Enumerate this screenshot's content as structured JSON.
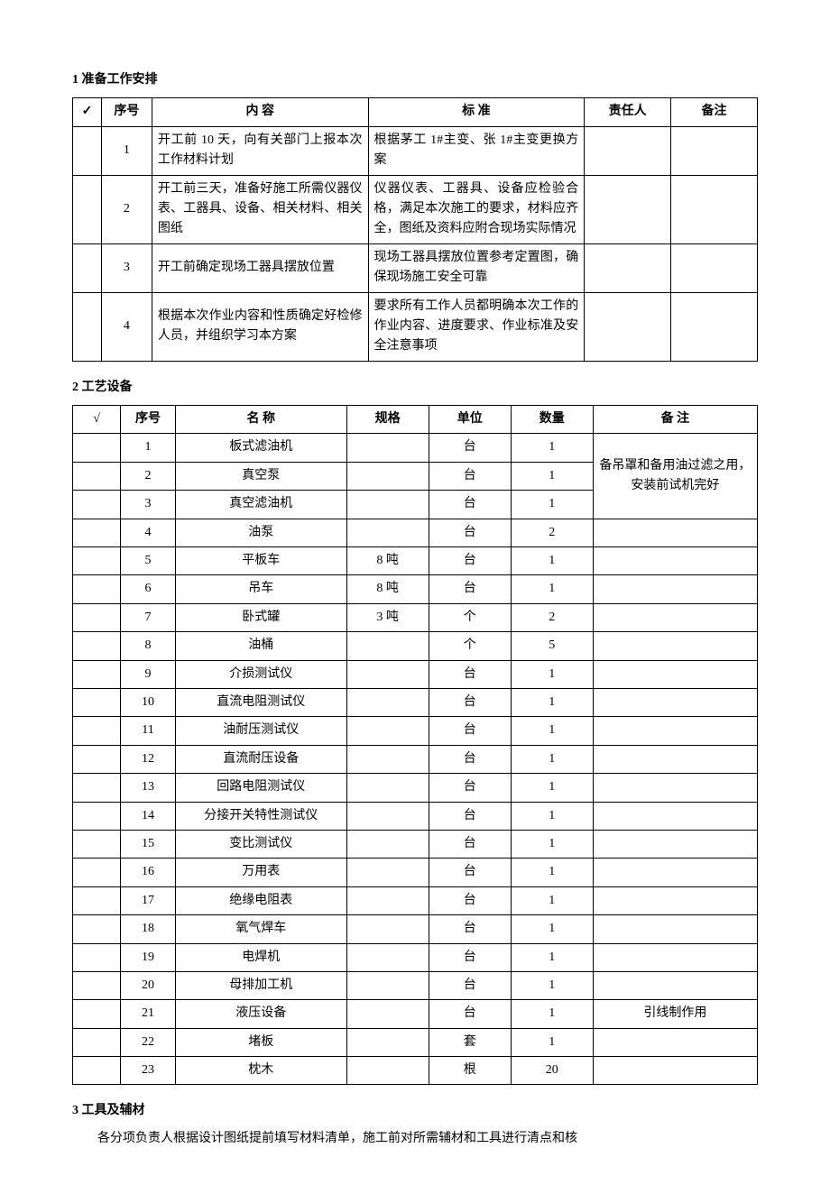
{
  "section1": {
    "title": "1 准备工作安排",
    "headers": {
      "check": "✓",
      "seq": "序号",
      "content": "内      容",
      "standard": "标      准",
      "person": "责任人",
      "remark": "备注"
    },
    "rows": [
      {
        "seq": "1",
        "content": "开工前 10 天，向有关部门上报本次工作材料计划",
        "standard": "根据茅工 1#主变、张 1#主变更换方案",
        "person": "",
        "remark": ""
      },
      {
        "seq": "2",
        "content": "开工前三天，准备好施工所需仪器仪表、工器具、设备、相关材料、相关图纸",
        "standard": "仪器仪表、工器具、设备应检验合格，满足本次施工的要求，材料应齐全，图纸及资料应附合现场实际情况",
        "person": "",
        "remark": ""
      },
      {
        "seq": "3",
        "content": "开工前确定现场工器具摆放位置",
        "standard": "现场工器具摆放位置参考定置图，确保现场施工安全可靠",
        "person": "",
        "remark": ""
      },
      {
        "seq": "4",
        "content": "根据本次作业内容和性质确定好检修人员，并组织学习本方案",
        "standard": "要求所有工作人员都明确本次工作的作业内容、进度要求、作业标准及安全注意事项",
        "person": "",
        "remark": ""
      }
    ]
  },
  "section2": {
    "title": "2 工艺设备",
    "headers": {
      "check": "√",
      "seq": "序号",
      "name": "名      称",
      "spec": "规格",
      "unit": "单位",
      "qty": "数量",
      "remark": "备      注"
    },
    "rows": [
      {
        "seq": "1",
        "name": "板式滤油机",
        "spec": "",
        "unit": "台",
        "qty": "1",
        "remark": ""
      },
      {
        "seq": "2",
        "name": "真空泵",
        "spec": "",
        "unit": "台",
        "qty": "1",
        "remark": ""
      },
      {
        "seq": "3",
        "name": "真空滤油机",
        "spec": "",
        "unit": "台",
        "qty": "1",
        "remark": ""
      },
      {
        "seq": "4",
        "name": "油泵",
        "spec": "",
        "unit": "台",
        "qty": "2",
        "remark": ""
      },
      {
        "seq": "5",
        "name": "平板车",
        "spec": "8 吨",
        "unit": "台",
        "qty": "1",
        "remark": ""
      },
      {
        "seq": "6",
        "name": "吊车",
        "spec": "8 吨",
        "unit": "台",
        "qty": "1",
        "remark": ""
      },
      {
        "seq": "7",
        "name": "卧式罐",
        "spec": "3 吨",
        "unit": "个",
        "qty": "2",
        "remark": ""
      },
      {
        "seq": "8",
        "name": "油桶",
        "spec": "",
        "unit": "个",
        "qty": "5",
        "remark": ""
      },
      {
        "seq": "9",
        "name": "介损测试仪",
        "spec": "",
        "unit": "台",
        "qty": "1",
        "remark": ""
      },
      {
        "seq": "10",
        "name": "直流电阻测试仪",
        "spec": "",
        "unit": "台",
        "qty": "1",
        "remark": ""
      },
      {
        "seq": "11",
        "name": "油耐压测试仪",
        "spec": "",
        "unit": "台",
        "qty": "1",
        "remark": ""
      },
      {
        "seq": "12",
        "name": "直流耐压设备",
        "spec": "",
        "unit": "台",
        "qty": "1",
        "remark": ""
      },
      {
        "seq": "13",
        "name": "回路电阻测试仪",
        "spec": "",
        "unit": "台",
        "qty": "1",
        "remark": ""
      },
      {
        "seq": "14",
        "name": "分接开关特性测试仪",
        "spec": "",
        "unit": "台",
        "qty": "1",
        "remark": ""
      },
      {
        "seq": "15",
        "name": "变比测试仪",
        "spec": "",
        "unit": "台",
        "qty": "1",
        "remark": ""
      },
      {
        "seq": "16",
        "name": "万用表",
        "spec": "",
        "unit": "台",
        "qty": "1",
        "remark": ""
      },
      {
        "seq": "17",
        "name": "绝缘电阻表",
        "spec": "",
        "unit": "台",
        "qty": "1",
        "remark": ""
      },
      {
        "seq": "18",
        "name": "氧气焊车",
        "spec": "",
        "unit": "台",
        "qty": "1",
        "remark": ""
      },
      {
        "seq": "19",
        "name": "电焊机",
        "spec": "",
        "unit": "台",
        "qty": "1",
        "remark": ""
      },
      {
        "seq": "20",
        "name": "母排加工机",
        "spec": "",
        "unit": "台",
        "qty": "1",
        "remark": ""
      },
      {
        "seq": "21",
        "name": "液压设备",
        "spec": "",
        "unit": "台",
        "qty": "1",
        "remark": "引线制作用"
      },
      {
        "seq": "22",
        "name": "堵板",
        "spec": "",
        "unit": "套",
        "qty": "1",
        "remark": ""
      },
      {
        "seq": "23",
        "name": "枕木",
        "spec": "",
        "unit": "根",
        "qty": "20",
        "remark": ""
      }
    ],
    "merged_remark": "备吊罩和备用油过滤之用，安装前试机完好"
  },
  "section3": {
    "title": "3 工具及辅材",
    "para": "各分项负责人根据设计图纸提前填写材料清单，施工前对所需辅材和工具进行清点和核"
  }
}
